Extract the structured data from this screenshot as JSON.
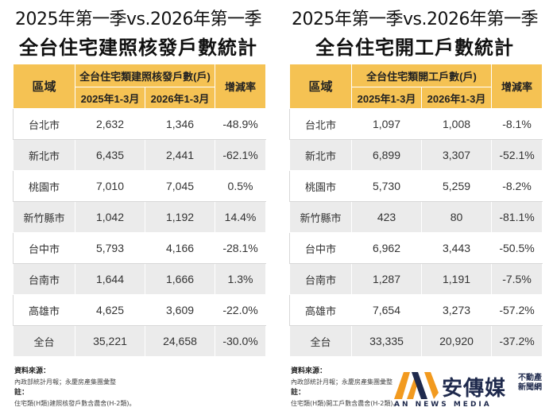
{
  "left": {
    "title_line1": "2025年第一季vs.2026年第一季",
    "title_line2": "全台住宅建照核發戶數統計",
    "header_region": "區域",
    "header_group": "全台住宅類建照核發戶數(戶)",
    "header_col1": "2025年1-3月",
    "header_col2": "2026年1-3月",
    "header_rate": "增減率",
    "rows": [
      {
        "region": "台北市",
        "a": "2,632",
        "b": "1,346",
        "rate": "-48.9%"
      },
      {
        "region": "新北市",
        "a": "6,435",
        "b": "2,441",
        "rate": "-62.1%"
      },
      {
        "region": "桃園市",
        "a": "7,010",
        "b": "7,045",
        "rate": "0.5%"
      },
      {
        "region": "新竹縣市",
        "a": "1,042",
        "b": "1,192",
        "rate": "14.4%"
      },
      {
        "region": "台中市",
        "a": "5,793",
        "b": "4,166",
        "rate": "-28.1%"
      },
      {
        "region": "台南市",
        "a": "1,644",
        "b": "1,666",
        "rate": "1.3%"
      },
      {
        "region": "高雄市",
        "a": "4,625",
        "b": "3,609",
        "rate": "-22.0%"
      },
      {
        "region": "全台",
        "a": "35,221",
        "b": "24,658",
        "rate": "-30.0%"
      }
    ],
    "source_label": "資料來源：",
    "source_text": "內政部統計月報；永慶房產集團彙整",
    "note_label": "註：",
    "note_text": "住宅類(H類)建照核發戶數含農舍(H-2類)。"
  },
  "right": {
    "title_line1": "2025年第一季vs.2026年第一季",
    "title_line2": "全台住宅開工戶數統計",
    "header_region": "區域",
    "header_group": "全台住宅類開工戶數(戶)",
    "header_col1": "2025年1-3月",
    "header_col2": "2026年1-3月",
    "header_rate": "增減率",
    "rows": [
      {
        "region": "台北市",
        "a": "1,097",
        "b": "1,008",
        "rate": "-8.1%"
      },
      {
        "region": "新北市",
        "a": "6,899",
        "b": "3,307",
        "rate": "-52.1%"
      },
      {
        "region": "桃園市",
        "a": "5,730",
        "b": "5,259",
        "rate": "-8.2%"
      },
      {
        "region": "新竹縣市",
        "a": "423",
        "b": "80",
        "rate": "-81.1%"
      },
      {
        "region": "台中市",
        "a": "6,962",
        "b": "3,443",
        "rate": "-50.5%"
      },
      {
        "region": "台南市",
        "a": "1,287",
        "b": "1,191",
        "rate": "-7.5%"
      },
      {
        "region": "高雄市",
        "a": "7,654",
        "b": "3,273",
        "rate": "-57.2%"
      },
      {
        "region": "全台",
        "a": "33,335",
        "b": "20,920",
        "rate": "-37.2%"
      }
    ],
    "source_label": "資料來源：",
    "source_text": "內政部統計月報；永慶房產集團彙整",
    "note_label": "註：",
    "note_text": "住宅類(H類)開工戶數含農舍(H-2類)。"
  },
  "logo": {
    "name": "安傳媒",
    "side_line1": "不動產",
    "side_line2": "新聞網",
    "english": "AN NEWS MEDIA",
    "colors": {
      "orange": "#f29a1f",
      "navy": "#1f2a4d"
    }
  }
}
